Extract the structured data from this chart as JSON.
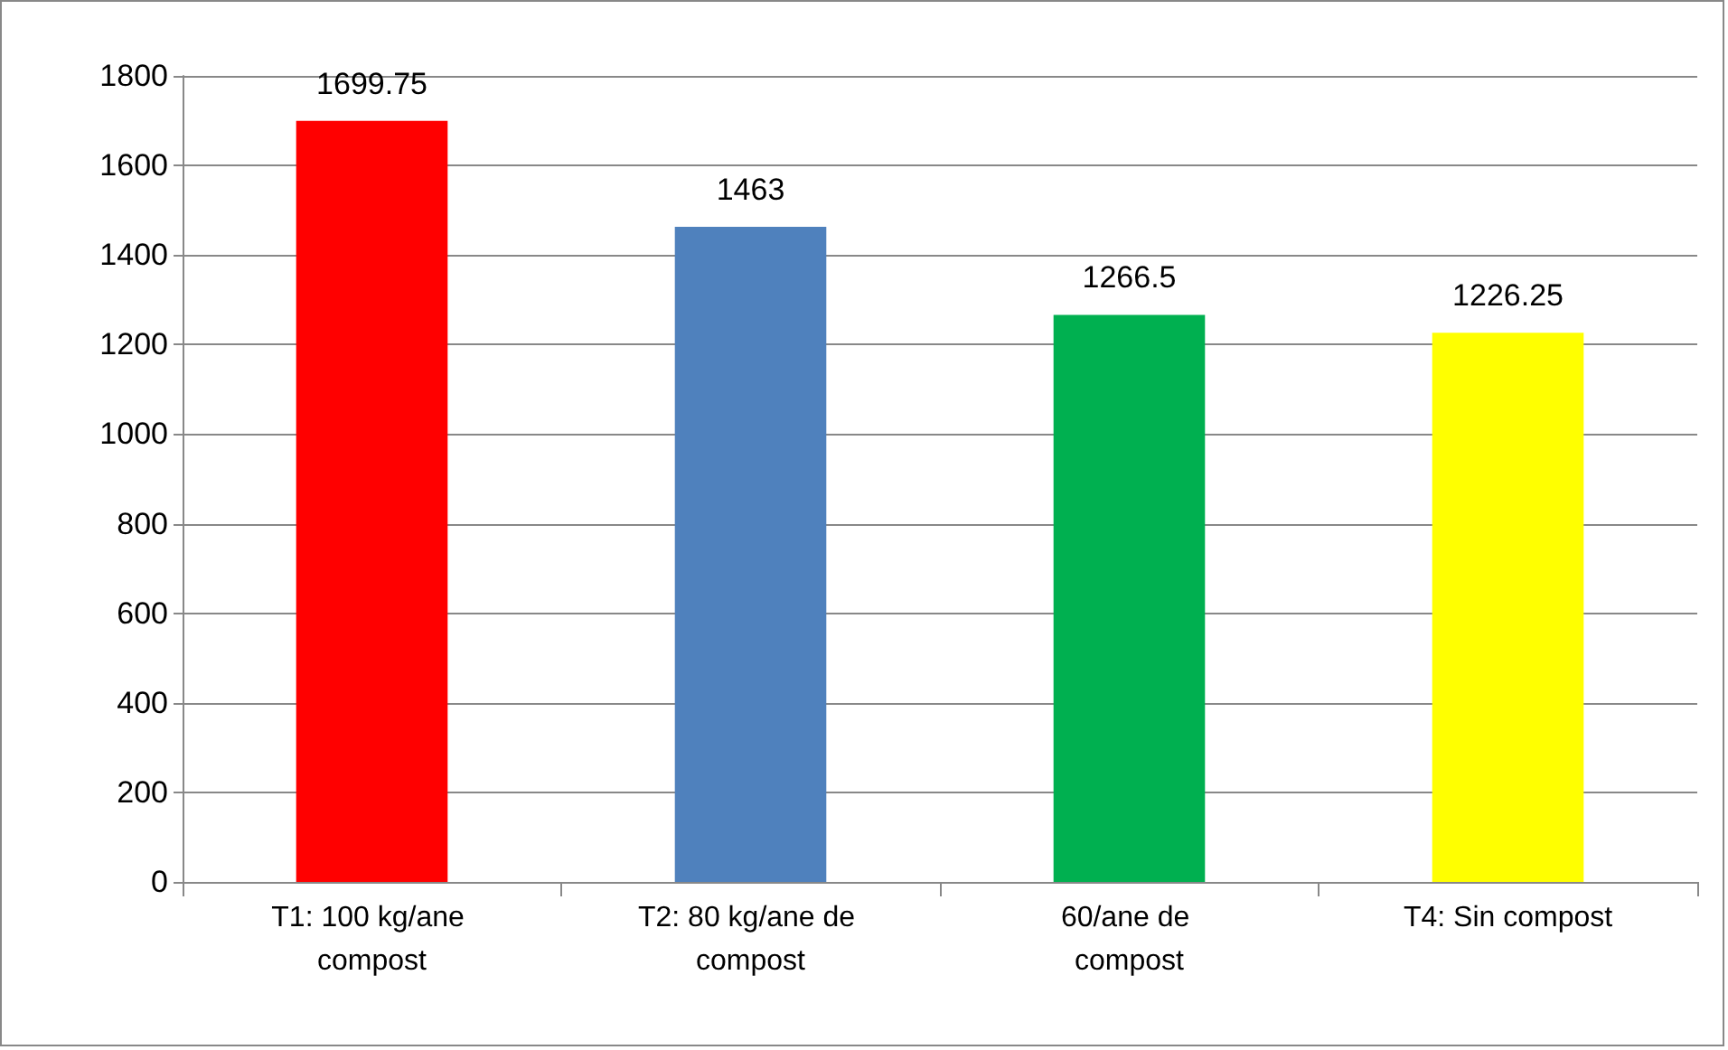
{
  "chart_data": {
    "type": "bar",
    "categories": [
      "T1: 100 kg/ane compost",
      "T2: 80 kg/ane de compost",
      "60/ane de compost",
      "T4: Sin compost"
    ],
    "values": [
      1699.75,
      1463,
      1266.5,
      1226.25
    ],
    "colors": [
      "#ff0000",
      "#4f81bd",
      "#00b050",
      "#ffff00"
    ],
    "ylim": [
      0,
      1800
    ],
    "yticks": [
      0,
      200,
      400,
      600,
      800,
      1000,
      1200,
      1400,
      1600,
      1800
    ],
    "grid": "y",
    "data_labels": true
  }
}
